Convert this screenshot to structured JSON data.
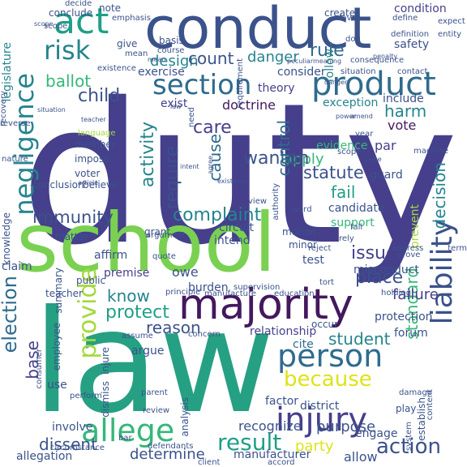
{
  "colors": {
    "background": "#ffffff",
    "dark_purple": "#44185e",
    "indigo": "#453f8c",
    "blue": "#3b528b",
    "slate": "#2f6b8e",
    "teal": "#25848e",
    "sea_green": "#1f9f88",
    "green": "#35b779",
    "lime": "#6ece58",
    "chartreuse": "#a5d83e",
    "yellow": "#dfe318"
  },
  "words": [
    {
      "text": "duty",
      "color": "#453f8c"
    },
    {
      "text": "law",
      "color": "#26a082"
    },
    {
      "text": "school",
      "color": "#7ad151"
    },
    {
      "text": "conduct",
      "color": "#3b528b"
    },
    {
      "text": "majority",
      "color": "#44185e"
    },
    {
      "text": "product",
      "color": "#2f6b8e"
    },
    {
      "text": "injury",
      "color": "#453f8c"
    },
    {
      "text": "allege",
      "color": "#35b779"
    },
    {
      "text": "liability",
      "color": "#3b528b"
    },
    {
      "text": "person",
      "color": "#2f6b8e"
    },
    {
      "text": "negligence",
      "color": "#25848e"
    },
    {
      "text": "section",
      "color": "#2f6b8e"
    },
    {
      "text": "risk",
      "color": "#25848e"
    },
    {
      "text": "act",
      "color": "#1f9f88"
    },
    {
      "text": "because",
      "color": "#dfe318"
    },
    {
      "text": "result",
      "color": "#1f9f88"
    },
    {
      "text": "action",
      "color": "#3b528b"
    },
    {
      "text": "provide",
      "color": "#a5d83e"
    },
    {
      "text": "election",
      "color": "#2f6b8e"
    },
    {
      "text": "complaint",
      "color": "#25848e"
    },
    {
      "text": "immunity",
      "color": "#3b528b"
    },
    {
      "text": "statute",
      "color": "#3b528b"
    },
    {
      "text": "care",
      "color": "#453f8c"
    },
    {
      "text": "apply",
      "color": "#35b779"
    },
    {
      "text": "fail",
      "color": "#1f9f88"
    },
    {
      "text": "wanton",
      "color": "#3b528b"
    },
    {
      "text": "control",
      "color": "#2f6b8e"
    },
    {
      "text": "activity",
      "color": "#25848e"
    },
    {
      "text": "require",
      "color": "#3b528b"
    },
    {
      "text": "cause",
      "color": "#2f6b8e"
    },
    {
      "text": "child",
      "color": "#3b528b"
    },
    {
      "text": "ballot",
      "color": "#35b779"
    },
    {
      "text": "design",
      "color": "#25848e"
    },
    {
      "text": "count",
      "color": "#3b528b"
    },
    {
      "text": "danger",
      "color": "#25848e"
    },
    {
      "text": "rule",
      "color": "#2f6b8e"
    },
    {
      "text": "place",
      "color": "#3b528b"
    },
    {
      "text": "issue",
      "color": "#453f8c"
    },
    {
      "text": "standard",
      "color": "#35b779"
    },
    {
      "text": "student",
      "color": "#25848e"
    },
    {
      "text": "protect",
      "color": "#1f9f88"
    },
    {
      "text": "reason",
      "color": "#3b528b"
    },
    {
      "text": "know",
      "color": "#25848e"
    },
    {
      "text": "dissent",
      "color": "#3b528b"
    },
    {
      "text": "determine",
      "color": "#3b528b"
    },
    {
      "text": "purpose",
      "color": "#3b528b"
    },
    {
      "text": "party",
      "color": "#dfe318"
    },
    {
      "text": "decision",
      "color": "#25848e"
    },
    {
      "text": "harm",
      "color": "#25848e"
    },
    {
      "text": "vote",
      "color": "#44185e"
    },
    {
      "text": "failure",
      "color": "#453f8c"
    },
    {
      "text": "recognize",
      "color": "#3b528b"
    },
    {
      "text": "base",
      "color": "#453f8c"
    },
    {
      "text": "exception",
      "color": "#25848e"
    },
    {
      "text": "include",
      "color": "#3b528b"
    },
    {
      "text": "theory",
      "color": "#453f8c"
    },
    {
      "text": "consider",
      "color": "#3b528b"
    },
    {
      "text": "exercise",
      "color": "#3b528b"
    },
    {
      "text": "doctrine",
      "color": "#44185e"
    },
    {
      "text": "exist",
      "color": "#453f8c"
    },
    {
      "text": "safety",
      "color": "#3b528b"
    },
    {
      "text": "follow",
      "color": "#25848e"
    },
    {
      "text": "create",
      "color": "#3b528b"
    },
    {
      "text": "condition",
      "color": "#453f8c"
    },
    {
      "text": "conclude",
      "color": "#3b528b"
    },
    {
      "text": "note",
      "color": "#3b528b"
    },
    {
      "text": "legislature",
      "color": "#25848e"
    },
    {
      "text": "basis",
      "color": "#3b528b"
    },
    {
      "text": "give",
      "color": "#3b528b"
    },
    {
      "text": "grant",
      "color": "#3b528b"
    },
    {
      "text": "candidate",
      "color": "#3b528b"
    },
    {
      "text": "support",
      "color": "#35b779"
    },
    {
      "text": "guard",
      "color": "#3b528b"
    },
    {
      "text": "evidence",
      "color": "#35b779"
    },
    {
      "text": "par",
      "color": "#453f8c"
    },
    {
      "text": "argue",
      "color": "#3b528b"
    },
    {
      "text": "relationship",
      "color": "#453f8c"
    },
    {
      "text": "cite",
      "color": "#2f6b8e"
    },
    {
      "text": "affirm",
      "color": "#3b528b"
    },
    {
      "text": "premise",
      "color": "#453f8c"
    },
    {
      "text": "owe",
      "color": "#3b528b"
    },
    {
      "text": "burden",
      "color": "#3b528b"
    },
    {
      "text": "summary",
      "color": "#3b528b"
    },
    {
      "text": "public",
      "color": "#3b528b"
    },
    {
      "text": "claim",
      "color": "#3b528b"
    },
    {
      "text": "misconduct",
      "color": "#3b528b"
    },
    {
      "text": "engage",
      "color": "#3b528b"
    },
    {
      "text": "manufacturer",
      "color": "#3b528b"
    },
    {
      "text": "allow",
      "color": "#3b528b"
    },
    {
      "text": "intend",
      "color": "#3b528b"
    },
    {
      "text": "circuit",
      "color": "#3b528b"
    },
    {
      "text": "motion",
      "color": "#3b528b"
    },
    {
      "text": "minor",
      "color": "#3b528b"
    },
    {
      "text": "test",
      "color": "#3b528b"
    },
    {
      "text": "member",
      "color": "#3b528b"
    },
    {
      "text": "impose",
      "color": "#3b528b"
    },
    {
      "text": "voter",
      "color": "#3b528b"
    },
    {
      "text": "conclusion",
      "color": "#3b528b"
    },
    {
      "text": "believe",
      "color": "#3b528b"
    },
    {
      "text": "matter",
      "color": "#3b528b"
    },
    {
      "text": "knowledge",
      "color": "#3b528b"
    },
    {
      "text": "prevent",
      "color": "#a5d83e"
    },
    {
      "text": "teacher",
      "color": "#3b528b"
    },
    {
      "text": "employee",
      "color": "#3b528b"
    },
    {
      "text": "involve",
      "color": "#3b528b"
    },
    {
      "text": "allegation",
      "color": "#3b528b"
    },
    {
      "text": "injure",
      "color": "#3b528b"
    },
    {
      "text": "dismiss",
      "color": "#3b528b"
    },
    {
      "text": "use",
      "color": "#3b528b"
    },
    {
      "text": "analysis",
      "color": "#3b528b"
    },
    {
      "text": "factor",
      "color": "#3b528b"
    },
    {
      "text": "district",
      "color": "#3b528b"
    },
    {
      "text": "protection",
      "color": "#3b528b"
    },
    {
      "text": "forum",
      "color": "#3b528b"
    },
    {
      "text": "education",
      "color": "#3b528b"
    },
    {
      "text": "establish",
      "color": "#3b528b"
    },
    {
      "text": "occur",
      "color": "#3b528b"
    },
    {
      "text": "language",
      "color": "#a5d83e"
    },
    {
      "text": "argument",
      "color": "#3b528b"
    },
    {
      "text": "quote",
      "color": "#3b528b"
    },
    {
      "text": "defendants",
      "color": "#3b528b"
    },
    {
      "text": "circumstance",
      "color": "#3b528b"
    },
    {
      "text": "perform",
      "color": "#3b528b"
    },
    {
      "text": "review",
      "color": "#3b528b"
    },
    {
      "text": "need",
      "color": "#3b528b"
    },
    {
      "text": "term",
      "color": "#3b528b"
    },
    {
      "text": "address",
      "color": "#3b528b"
    },
    {
      "text": "scope",
      "color": "#3b528b"
    },
    {
      "text": "mean",
      "color": "#3b528b"
    },
    {
      "text": "course",
      "color": "#3b528b"
    },
    {
      "text": "fall",
      "color": "#3b528b"
    },
    {
      "text": "define",
      "color": "#3b528b"
    },
    {
      "text": "favor",
      "color": "#3b528b"
    },
    {
      "text": "expect",
      "color": "#3b528b"
    },
    {
      "text": "definition",
      "color": "#3b528b"
    },
    {
      "text": "entity",
      "color": "#3b528b"
    },
    {
      "text": "dog",
      "color": "#3b528b"
    },
    {
      "text": "emphasis",
      "color": "#3b528b"
    },
    {
      "text": "decide",
      "color": "#3b528b"
    },
    {
      "text": "existence",
      "color": "#3b528b"
    },
    {
      "text": "reverse",
      "color": "#3b528b"
    },
    {
      "text": "nature",
      "color": "#3b528b"
    },
    {
      "text": "recovery",
      "color": "#3b528b"
    },
    {
      "text": "situation",
      "color": "#3b528b"
    },
    {
      "text": "consequence",
      "color": "#3b528b"
    },
    {
      "text": "requirement",
      "color": "#3b528b"
    },
    {
      "text": "contact",
      "color": "#3b528b"
    },
    {
      "text": "machine",
      "color": "#3b528b"
    },
    {
      "text": "year",
      "color": "#3b528b"
    },
    {
      "text": "scope",
      "color": "#3b528b"
    },
    {
      "text": "view",
      "color": "#3b528b"
    },
    {
      "text": "authority",
      "color": "#3b528b"
    },
    {
      "text": "article",
      "color": "#3b528b"
    },
    {
      "text": "principle",
      "color": "#3b528b"
    },
    {
      "text": "manufacture",
      "color": "#3b528b"
    },
    {
      "text": "supervision",
      "color": "#3b528b"
    },
    {
      "text": "accord",
      "color": "#3b528b"
    },
    {
      "text": "concern",
      "color": "#3b528b"
    },
    {
      "text": "assume",
      "color": "#3b528b"
    },
    {
      "text": "consumer",
      "color": "#3b528b"
    },
    {
      "text": "parent",
      "color": "#3b528b"
    },
    {
      "text": "client",
      "color": "#3b528b"
    },
    {
      "text": "damage",
      "color": "#3b528b"
    },
    {
      "text": "system",
      "color": "#3b528b"
    },
    {
      "text": "content",
      "color": "#3b528b"
    },
    {
      "text": "play",
      "color": "#3b528b"
    },
    {
      "text": "bar",
      "color": "#3b528b"
    },
    {
      "text": "word",
      "color": "#3b528b"
    },
    {
      "text": "rely",
      "color": "#3b528b"
    },
    {
      "text": "tort",
      "color": "#3b528b"
    },
    {
      "text": "holding",
      "color": "#3b528b"
    },
    {
      "text": "prove",
      "color": "#3b528b"
    },
    {
      "text": "reject",
      "color": "#3b528b"
    },
    {
      "text": "penalty",
      "color": "#3b528b"
    },
    {
      "text": "danger",
      "color": "#3b528b"
    },
    {
      "text": "meaning",
      "color": "#3b528b"
    },
    {
      "text": "peculiar",
      "color": "#3b528b"
    },
    {
      "text": "agree",
      "color": "#3b528b"
    },
    {
      "text": "game",
      "color": "#3b528b"
    },
    {
      "text": "amend",
      "color": "#3b528b"
    },
    {
      "text": "power",
      "color": "#3b528b"
    },
    {
      "text": "mean",
      "color": "#3b528b"
    },
    {
      "text": "teacher",
      "color": "#3b528b"
    },
    {
      "text": "scope",
      "color": "#3b528b"
    },
    {
      "text": "situation",
      "color": "#3b528b"
    },
    {
      "text": "existence",
      "color": "#3b528b"
    },
    {
      "text": "intent",
      "color": "#3b528b"
    },
    {
      "text": "law",
      "color": "#3b528b"
    }
  ]
}
